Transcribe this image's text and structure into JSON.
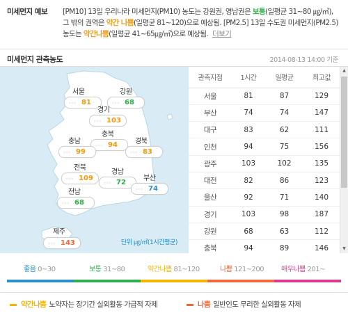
{
  "forecast": {
    "title": "미세먼지 예보",
    "text_1": "[PM10] 13일 우리나라 미세먼지(PM10) 농도는 강원권, 영남권은 ",
    "level_1": "보통",
    "text_2": "(일평균 31~80 ㎍/㎥), 그 밖의 권역은 ",
    "level_2": "약간 나쁨",
    "text_3": "(일평균 81~120)으로 예상됨. [PM2.5] 13일 수도권 미세먼지(PM2.5) 농도는 ",
    "level_3": "약간나쁨",
    "text_4": "(일평균 41~65㎍/㎥)으로 예상됨.",
    "more_label": "더보기"
  },
  "section": {
    "title": "미세먼지 관측농도",
    "date": "2014-08-13 14:00 기준"
  },
  "map": {
    "regions": [
      {
        "name": "서울",
        "value": "81",
        "level": "bad1"
      },
      {
        "name": "강원",
        "value": "68",
        "level": "good"
      },
      {
        "name": "경기",
        "value": "103",
        "level": "bad1"
      },
      {
        "name": "충북",
        "value": "94",
        "level": "bad1"
      },
      {
        "name": "충남",
        "value": "99",
        "level": "bad1"
      },
      {
        "name": "경북",
        "value": "83",
        "level": "bad1"
      },
      {
        "name": "전북",
        "value": "109",
        "level": "bad1"
      },
      {
        "name": "경남",
        "value": "72",
        "level": "good"
      },
      {
        "name": "부산",
        "value": "74",
        "level": "info"
      },
      {
        "name": "전남",
        "value": "68",
        "level": "good"
      },
      {
        "name": "제주",
        "value": "143",
        "level": "bad2"
      }
    ],
    "unit_note": "단위 ㎍/㎥(1시간평균)",
    "dots": "◦◦◦"
  },
  "table": {
    "headers": [
      "관측지점",
      "1시간",
      "일평균",
      "최고값"
    ],
    "rows": [
      [
        "서울",
        "81",
        "87",
        "129"
      ],
      [
        "부산",
        "74",
        "74",
        "147"
      ],
      [
        "대구",
        "83",
        "62",
        "111"
      ],
      [
        "인천",
        "94",
        "75",
        "156"
      ],
      [
        "광주",
        "103",
        "102",
        "135"
      ],
      [
        "대전",
        "82",
        "86",
        "123"
      ],
      [
        "울산",
        "92",
        "71",
        "140"
      ],
      [
        "경기",
        "103",
        "98",
        "187"
      ],
      [
        "강원",
        "68",
        "63",
        "112"
      ],
      [
        "충북",
        "94",
        "89",
        "146"
      ]
    ]
  },
  "legend": [
    {
      "label": "좋음",
      "range": "0~30",
      "color": "#2b8fcc"
    },
    {
      "label": "보통",
      "range": "31~80",
      "color": "#2eae4a"
    },
    {
      "label": "약간나쁨",
      "range": "81~120",
      "color": "#f5b400"
    },
    {
      "label": "나쁨",
      "range": "121~200",
      "color": "#ec6a3f"
    },
    {
      "label": "매우나쁨",
      "range": "201~",
      "color": "#d83a8c"
    }
  ],
  "notes": [
    {
      "level": "약간나쁨",
      "text": "노약자는 장기간 실외활동 가급적 자제",
      "color": "#f5b400"
    },
    {
      "level": "나쁨",
      "text": "일반인도 무리한 실외활동 자제",
      "color": "#ec6a3f"
    }
  ]
}
